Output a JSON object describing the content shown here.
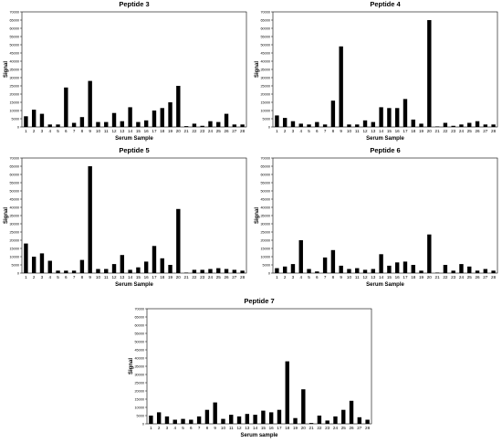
{
  "chart_data": [
    {
      "type": "bar",
      "title": "Peptide 3",
      "xlabel": "Serum Sample",
      "ylabel": "Signal",
      "ylim": [
        0,
        70000
      ],
      "yticks": [
        0,
        5000,
        10000,
        15000,
        20000,
        25000,
        30000,
        35000,
        40000,
        45000,
        50000,
        55000,
        60000,
        65000,
        70000
      ],
      "grid": false,
      "categories": [
        "1",
        "2",
        "3",
        "4",
        "5",
        "6",
        "7",
        "8",
        "9",
        "10",
        "11",
        "12",
        "13",
        "14",
        "15",
        "16",
        "17",
        "18",
        "19",
        "20",
        "21",
        "22",
        "23",
        "24",
        "25",
        "26",
        "27",
        "28"
      ],
      "values": [
        6500,
        10500,
        8000,
        1500,
        1500,
        24000,
        2500,
        6000,
        28000,
        3000,
        3000,
        8500,
        3500,
        12000,
        3000,
        4000,
        10000,
        11500,
        15000,
        25000,
        500,
        2000,
        700,
        3500,
        3000,
        8000,
        1500,
        1500
      ]
    },
    {
      "type": "bar",
      "title": "Peptide 4",
      "xlabel": "Serum Sample",
      "ylabel": "Signal",
      "ylim": [
        0,
        70000
      ],
      "yticks": [
        0,
        5000,
        10000,
        15000,
        20000,
        25000,
        30000,
        35000,
        40000,
        45000,
        50000,
        55000,
        60000,
        65000,
        70000
      ],
      "grid": false,
      "categories": [
        "1",
        "2",
        "3",
        "4",
        "5",
        "6",
        "7",
        "8",
        "9",
        "10",
        "11",
        "12",
        "13",
        "14",
        "15",
        "16",
        "17",
        "18",
        "19",
        "20",
        "21",
        "22",
        "23",
        "24",
        "25",
        "26",
        "27",
        "28"
      ],
      "values": [
        7000,
        5500,
        3500,
        2000,
        1500,
        3000,
        1500,
        16000,
        49000,
        1500,
        1500,
        4000,
        3000,
        12000,
        11500,
        11500,
        17000,
        4500,
        2000,
        65000,
        300,
        2500,
        700,
        1500,
        2500,
        3500,
        1500,
        1500
      ]
    },
    {
      "type": "bar",
      "title": "Peptide 5",
      "xlabel": "Serum Sample",
      "ylabel": "Signal",
      "ylim": [
        0,
        70000
      ],
      "yticks": [
        0,
        5000,
        10000,
        15000,
        20000,
        25000,
        30000,
        35000,
        40000,
        45000,
        50000,
        55000,
        60000,
        65000,
        70000
      ],
      "grid": false,
      "categories": [
        "1",
        "2",
        "3",
        "4",
        "5",
        "6",
        "7",
        "8",
        "9",
        "10",
        "11",
        "12",
        "13",
        "14",
        "15",
        "16",
        "17",
        "18",
        "19",
        "20",
        "21",
        "22",
        "23",
        "24",
        "25",
        "26",
        "27",
        "28"
      ],
      "values": [
        18000,
        10000,
        12000,
        7500,
        1500,
        1500,
        1500,
        8000,
        65000,
        2500,
        2500,
        5500,
        11000,
        2000,
        3500,
        7000,
        16500,
        9000,
        5000,
        39000,
        300,
        2000,
        2000,
        2500,
        3000,
        2500,
        2000,
        1500
      ]
    },
    {
      "type": "bar",
      "title": "Peptide 6",
      "xlabel": "Serum Sample",
      "ylabel": "Signal",
      "ylim": [
        0,
        70000
      ],
      "yticks": [
        0,
        5000,
        10000,
        15000,
        20000,
        25000,
        30000,
        35000,
        40000,
        45000,
        50000,
        55000,
        60000,
        65000,
        70000
      ],
      "grid": false,
      "categories": [
        "1",
        "2",
        "3",
        "4",
        "5",
        "6",
        "7",
        "8",
        "9",
        "10",
        "11",
        "12",
        "13",
        "14",
        "15",
        "16",
        "17",
        "18",
        "19",
        "20",
        "21",
        "22",
        "23",
        "24",
        "25",
        "26",
        "27",
        "28"
      ],
      "values": [
        3000,
        4000,
        5500,
        20000,
        2500,
        1000,
        9500,
        14000,
        4500,
        2500,
        3000,
        2000,
        2500,
        11500,
        4500,
        6500,
        7000,
        5000,
        1500,
        23500,
        300,
        5000,
        1500,
        5500,
        4000,
        1500,
        2500,
        1500
      ]
    },
    {
      "type": "bar",
      "title": "Peptide 7",
      "xlabel": "Serum sample",
      "ylabel": "Signal",
      "ylim": [
        0,
        70000
      ],
      "yticks": [
        0,
        5000,
        10000,
        15000,
        20000,
        25000,
        30000,
        35000,
        40000,
        45000,
        50000,
        55000,
        60000,
        65000,
        70000
      ],
      "grid": false,
      "categories": [
        "1",
        "2",
        "3",
        "4",
        "5",
        "6",
        "7",
        "8",
        "9",
        "10",
        "11",
        "12",
        "13",
        "14",
        "15",
        "16",
        "17",
        "18",
        "19",
        "20",
        "21",
        "22",
        "23",
        "24",
        "25",
        "26",
        "27",
        "28"
      ],
      "values": [
        5000,
        7000,
        4500,
        2500,
        3000,
        2500,
        4500,
        8500,
        13000,
        3000,
        5500,
        4500,
        6000,
        5500,
        8000,
        7000,
        8500,
        38000,
        3500,
        21000,
        500,
        5000,
        2000,
        4500,
        8500,
        14000,
        4000,
        2500
      ]
    }
  ]
}
